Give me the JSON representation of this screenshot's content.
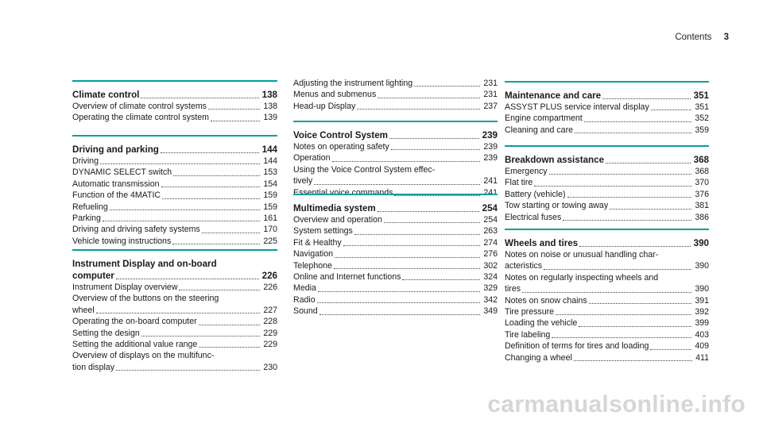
{
  "header": {
    "title": "Contents",
    "page": "3"
  },
  "accent_color": "#00a19c",
  "watermark": "carmanualsonline.info",
  "columns": [
    {
      "sections": [
        {
          "entries": [
            {
              "text": "Climate control",
              "page": "138",
              "head": true
            },
            {
              "text": "Overview of climate control systems",
              "page": "138"
            },
            {
              "text": "Operating the climate control system",
              "page": "139"
            }
          ]
        },
        {
          "entries": [
            {
              "text": "Driving and parking",
              "page": "144",
              "head": true
            },
            {
              "text": "Driving",
              "page": "144"
            },
            {
              "text": "DYNAMIC SELECT switch",
              "page": "153"
            },
            {
              "text": "Automatic transmission",
              "page": "154"
            },
            {
              "text": "Function of the 4MATIC",
              "page": "159"
            },
            {
              "text": "Refueling",
              "page": "159"
            },
            {
              "text": "Parking",
              "page": "161"
            },
            {
              "text": "Driving and driving safety systems",
              "page": "170"
            },
            {
              "text": "Vehicle towing instructions",
              "page": "225"
            }
          ]
        },
        {
          "entries": [
            {
              "line1": "Instrument Display and on-board",
              "text": "computer",
              "page": "226",
              "head": true
            },
            {
              "text": "Instrument Display overview",
              "page": "226"
            },
            {
              "line1": "Overview of the buttons on the steering",
              "text": "wheel",
              "page": "227"
            },
            {
              "text": "Operating the on-board computer",
              "page": "228"
            },
            {
              "text": "Setting the design",
              "page": "229"
            },
            {
              "text": "Setting the additional value range",
              "page": "229"
            },
            {
              "line1": "Overview of displays on the multifunc-",
              "text": "tion display",
              "page": "230"
            }
          ]
        }
      ]
    },
    {
      "sections": [
        {
          "entries": [
            {
              "text": "Adjusting the instrument lighting",
              "page": "231"
            },
            {
              "text": "Menus and submenus",
              "page": "231"
            },
            {
              "text": "Head-up Display",
              "page": "237"
            }
          ]
        },
        {
          "entries": [
            {
              "text": "Voice Control System",
              "page": "239",
              "head": true
            },
            {
              "text": "Notes on operating safety",
              "page": "239"
            },
            {
              "text": "Operation",
              "page": "239"
            },
            {
              "line1": "Using the Voice Control System effec-",
              "text": "tively",
              "page": "241"
            },
            {
              "text": "Essential voice commands",
              "page": "241"
            }
          ]
        },
        {
          "entries": [
            {
              "text": "Multimedia system",
              "page": "254",
              "head": true
            },
            {
              "text": "Overview and operation",
              "page": "254"
            },
            {
              "text": "System settings",
              "page": "263"
            },
            {
              "text": "Fit & Healthy",
              "page": "274"
            },
            {
              "text": "Navigation",
              "page": "276"
            },
            {
              "text": "Telephone",
              "page": "302"
            },
            {
              "text": "Online and Internet functions",
              "page": "324"
            },
            {
              "text": "Media",
              "page": "329"
            },
            {
              "text": "Radio",
              "page": "342"
            },
            {
              "text": "Sound",
              "page": "349"
            }
          ]
        }
      ]
    },
    {
      "sections": [
        {
          "entries": [
            {
              "text": "Maintenance and care",
              "page": "351",
              "head": true
            },
            {
              "text": "ASSYST PLUS service interval display",
              "page": "351"
            },
            {
              "text": "Engine compartment",
              "page": "352"
            },
            {
              "text": "Cleaning and care",
              "page": "359"
            }
          ]
        },
        {
          "entries": [
            {
              "text": "Breakdown assistance",
              "page": "368",
              "head": true
            },
            {
              "text": "Emergency",
              "page": "368"
            },
            {
              "text": "Flat tire",
              "page": "370"
            },
            {
              "text": "Battery (vehicle)",
              "page": "376"
            },
            {
              "text": "Tow starting or towing away",
              "page": "381"
            },
            {
              "text": "Electrical fuses",
              "page": "386"
            }
          ]
        },
        {
          "entries": [
            {
              "text": "Wheels and tires",
              "page": "390",
              "head": true
            },
            {
              "line1": "Notes on noise or unusual handling char-",
              "text": "acteristics",
              "page": "390"
            },
            {
              "line1": "Notes on regularly inspecting wheels and",
              "text": "tires",
              "page": "390"
            },
            {
              "text": "Notes on snow chains",
              "page": "391"
            },
            {
              "text": "Tire pressure",
              "page": "392"
            },
            {
              "text": "Loading the vehicle",
              "page": "399"
            },
            {
              "text": "Tire labeling",
              "page": "403"
            },
            {
              "text": "Definition of terms for tires and loading",
              "page": "409"
            },
            {
              "text": "Changing a wheel",
              "page": "411"
            }
          ]
        }
      ]
    }
  ]
}
